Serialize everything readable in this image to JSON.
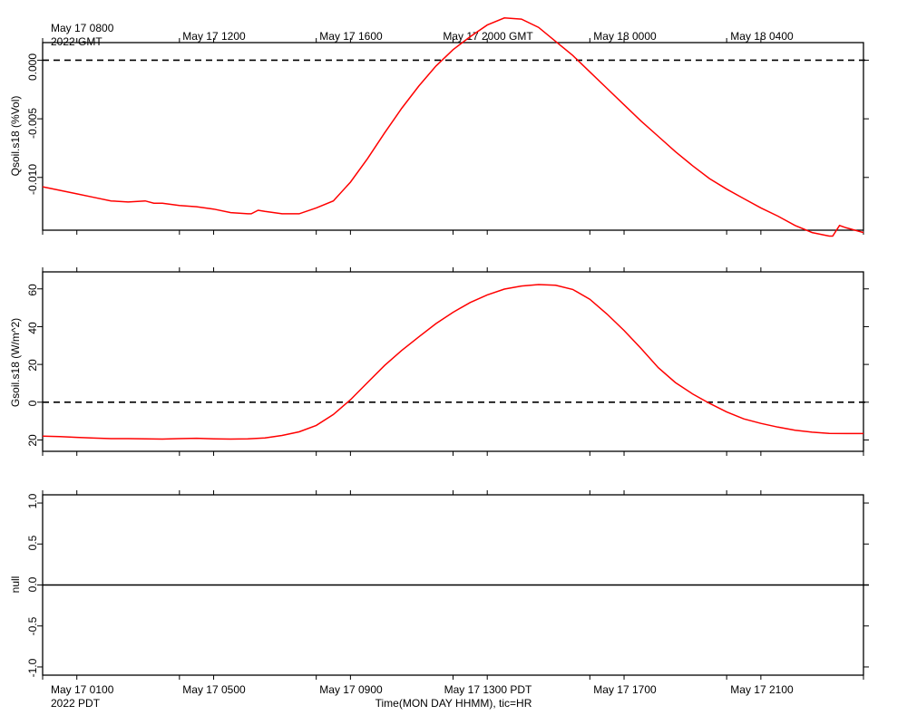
{
  "chart_data": [
    {
      "type": "line",
      "ylabel": "Qsoil.s18 (%Vol)",
      "ylim": [
        -0.0145,
        0.0015
      ],
      "yticks": [
        0.0,
        -0.005,
        -0.01
      ],
      "ytick_labels": [
        "0.000",
        "-0.005",
        "-0.010"
      ],
      "zero_line": "dashed",
      "series": [
        {
          "color": "#ff0000",
          "x": [
            0,
            0.5,
            1,
            1.5,
            2,
            2.5,
            3,
            3.25,
            3.5,
            4,
            4.5,
            5,
            5.5,
            6,
            6.1,
            6.3,
            6.5,
            7,
            7.5,
            8,
            8.5,
            9,
            9.5,
            10,
            10.5,
            11,
            11.5,
            12,
            12.5,
            13,
            13.5,
            14,
            14.5,
            15,
            15.5,
            16,
            16.5,
            17,
            17.5,
            18,
            18.5,
            19,
            19.5,
            20,
            20.5,
            21,
            21.5,
            22,
            22.5,
            23,
            23.1,
            23.3,
            23.5,
            24
          ],
          "values": [
            -0.0108,
            -0.0111,
            -0.0114,
            -0.0117,
            -0.012,
            -0.0121,
            -0.012,
            -0.0122,
            -0.0122,
            -0.0124,
            -0.0125,
            -0.0127,
            -0.013,
            -0.0131,
            -0.0131,
            -0.0128,
            -0.0129,
            -0.0131,
            -0.0131,
            -0.0126,
            -0.012,
            -0.0104,
            -0.0084,
            -0.0062,
            -0.0041,
            -0.0022,
            -0.0005,
            0.0009,
            0.002,
            0.003,
            0.0036,
            0.0035,
            0.0028,
            0.0016,
            0.0004,
            -0.001,
            -0.0024,
            -0.0038,
            -0.0052,
            -0.0065,
            -0.0078,
            -0.009,
            -0.0101,
            -0.011,
            -0.0118,
            -0.0126,
            -0.0133,
            -0.0141,
            -0.0147,
            -0.015,
            -0.015,
            -0.0141,
            -0.0143,
            -0.0147
          ]
        }
      ]
    },
    {
      "type": "line",
      "ylabel": "Gsoil.s18 (W/m^2)",
      "ylim": [
        -26,
        69
      ],
      "yticks": [
        60,
        40,
        20,
        0,
        -20
      ],
      "ytick_labels": [
        "60",
        "40",
        "20",
        "0",
        "20"
      ],
      "zero_line": "dashed",
      "series": [
        {
          "color": "#ff0000",
          "x": [
            0,
            0.5,
            1,
            1.5,
            2,
            2.5,
            3,
            3.5,
            4,
            4.5,
            5,
            5.5,
            6,
            6.5,
            7,
            7.5,
            8,
            8.5,
            9,
            9.5,
            10,
            10.5,
            11,
            11.5,
            12,
            12.5,
            13,
            13.5,
            14,
            14.5,
            15,
            15.5,
            16,
            16.5,
            17,
            17.5,
            18,
            18.5,
            19,
            19.5,
            20,
            20.5,
            21,
            21.5,
            22,
            22.5,
            23,
            23.5,
            24
          ],
          "values": [
            -18,
            -18.2,
            -18.6,
            -19,
            -19.3,
            -19.3,
            -19.4,
            -19.5,
            -19.3,
            -19.1,
            -19.4,
            -19.5,
            -19.4,
            -18.9,
            -17.6,
            -15.7,
            -12.3,
            -6.5,
            1.3,
            10.4,
            19.5,
            27.4,
            34.6,
            41.6,
            47.6,
            52.8,
            56.8,
            59.9,
            61.5,
            62.3,
            61.9,
            59.7,
            54.5,
            46.7,
            38,
            28.4,
            18.3,
            10.4,
            4.4,
            -0.6,
            -5.2,
            -8.8,
            -11.2,
            -13.2,
            -14.8,
            -15.9,
            -16.5,
            -16.6,
            -16.6
          ]
        }
      ]
    },
    {
      "type": "line",
      "ylabel": "null",
      "ylim": [
        -1.1,
        1.1
      ],
      "yticks": [
        1.0,
        0.5,
        0.0,
        -0.5,
        -1.0
      ],
      "ytick_labels": [
        "1.0",
        "0.5",
        "0.0",
        "-0.5",
        "-1.0"
      ],
      "zero_line": "solid",
      "series": []
    }
  ],
  "x_axis": {
    "top_ticks": [
      "May 17 0800",
      "May 17 1200",
      "May 17 1600",
      "May 17 2000 GMT",
      "May 18 0000",
      "May 18 0400"
    ],
    "top_year": "2022 GMT",
    "bottom_ticks": [
      "May 17 0100",
      "May 17 0500",
      "May 17 0900",
      "May 17 1300 PDT",
      "May 17 1700",
      "May 17 2100"
    ],
    "bottom_year": "2022 PDT",
    "xlabel": "Time(MON DAY HHMM), tic=HR"
  }
}
